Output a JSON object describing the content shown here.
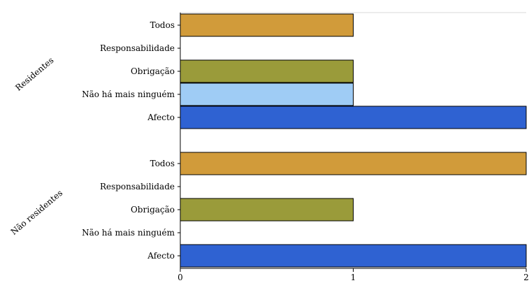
{
  "chart_data": {
    "type": "bar",
    "orientation": "horizontal",
    "title": "",
    "xlabel": "",
    "ylabel": "",
    "xlim": [
      0,
      2
    ],
    "x_ticks": [
      "0",
      "1",
      "2"
    ],
    "grid": false,
    "legend": "none",
    "groups": [
      {
        "name": "Residentes",
        "bars": [
          {
            "category": "Todos",
            "value": 1,
            "color": "#D19B3A"
          },
          {
            "category": "Responsabilidade",
            "value": 0,
            "color": "#CCCCCC"
          },
          {
            "category": "Obrigação",
            "value": 1,
            "color": "#9A9B3A"
          },
          {
            "category": "Não há mais ninguém",
            "value": 1,
            "color": "#9FCCF5"
          },
          {
            "category": "Afecto",
            "value": 2,
            "color": "#2F62D2"
          }
        ]
      },
      {
        "name": "Não residentes",
        "bars": [
          {
            "category": "Todos",
            "value": 2,
            "color": "#D19B3A"
          },
          {
            "category": "Responsabilidade",
            "value": 0,
            "color": "#CCCCCC"
          },
          {
            "category": "Obrigação",
            "value": 1,
            "color": "#9A9B3A"
          },
          {
            "category": "Não há mais ninguém",
            "value": 0,
            "color": "#9FCCF5"
          },
          {
            "category": "Afecto",
            "value": 2,
            "color": "#2F62D2"
          }
        ]
      }
    ]
  }
}
